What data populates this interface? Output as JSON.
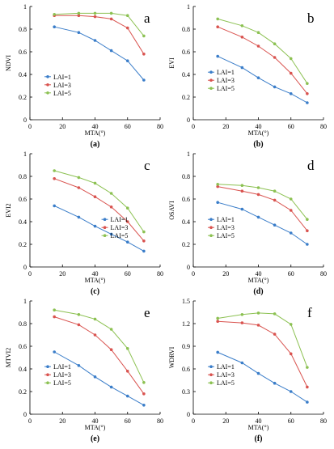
{
  "chart_data": [
    {
      "type": "line",
      "panel_letter": "a",
      "caption": "(a)",
      "ylabel": "NDVI",
      "xlabel": "MTA(°)",
      "xlim": [
        0,
        80
      ],
      "xticks": [
        "0",
        "20",
        "40",
        "60",
        "80"
      ],
      "ylim": [
        0,
        1
      ],
      "yticks": [
        "0",
        "0.2",
        "0.4",
        "0.6",
        "0.8",
        "1"
      ],
      "x": [
        15,
        30,
        40,
        50,
        60,
        70
      ],
      "series": [
        {
          "name": "LAI=1",
          "color": "#3a7dc9",
          "values": [
            0.82,
            0.77,
            0.7,
            0.61,
            0.52,
            0.35
          ]
        },
        {
          "name": "LAI=3",
          "color": "#d9534f",
          "values": [
            0.92,
            0.92,
            0.91,
            0.89,
            0.81,
            0.58
          ]
        },
        {
          "name": "LAI=5",
          "color": "#8cc152",
          "values": [
            0.93,
            0.94,
            0.94,
            0.94,
            0.92,
            0.74
          ]
        }
      ],
      "legend": "center-left"
    },
    {
      "type": "line",
      "panel_letter": "b",
      "caption": "(b)",
      "ylabel": "EVI",
      "xlabel": "MTA(°)",
      "xlim": [
        0,
        80
      ],
      "xticks": [
        "0",
        "20",
        "40",
        "60",
        "80"
      ],
      "ylim": [
        0,
        1
      ],
      "yticks": [
        "0",
        "0.2",
        "0.4",
        "0.6",
        "0.8",
        "1"
      ],
      "x": [
        15,
        30,
        40,
        50,
        60,
        70
      ],
      "series": [
        {
          "name": "LAI=1",
          "color": "#3a7dc9",
          "values": [
            0.56,
            0.46,
            0.37,
            0.29,
            0.23,
            0.15
          ]
        },
        {
          "name": "LAI=3",
          "color": "#d9534f",
          "values": [
            0.82,
            0.73,
            0.65,
            0.55,
            0.41,
            0.23
          ]
        },
        {
          "name": "LAI=5",
          "color": "#8cc152",
          "values": [
            0.89,
            0.83,
            0.77,
            0.67,
            0.54,
            0.32
          ]
        }
      ],
      "legend": "bottom-left"
    },
    {
      "type": "line",
      "panel_letter": "c",
      "caption": "(c)",
      "ylabel": "EVI2",
      "xlabel": "MTA(°)",
      "xlim": [
        0,
        80
      ],
      "xticks": [
        "0",
        "20",
        "40",
        "60",
        "80"
      ],
      "ylim": [
        0,
        1
      ],
      "yticks": [
        "0",
        "0.2",
        "0.4",
        "0.6",
        "0.8",
        "1"
      ],
      "x": [
        15,
        30,
        40,
        50,
        60,
        70
      ],
      "series": [
        {
          "name": "LAI=1",
          "color": "#3a7dc9",
          "values": [
            0.54,
            0.44,
            0.36,
            0.29,
            0.22,
            0.14
          ]
        },
        {
          "name": "LAI=3",
          "color": "#d9534f",
          "values": [
            0.78,
            0.7,
            0.62,
            0.53,
            0.4,
            0.23
          ]
        },
        {
          "name": "LAI=5",
          "color": "#8cc152",
          "values": [
            0.85,
            0.79,
            0.74,
            0.65,
            0.52,
            0.31
          ]
        }
      ],
      "legend": "bottom-right"
    },
    {
      "type": "line",
      "panel_letter": "d",
      "caption": "(d)",
      "ylabel": "OSAVI",
      "xlabel": "MTA(°)",
      "xlim": [
        0,
        80
      ],
      "xticks": [
        "0",
        "20",
        "40",
        "60",
        "80"
      ],
      "ylim": [
        0,
        1
      ],
      "yticks": [
        "0",
        "0.2",
        "0.4",
        "0.6",
        "0.8",
        "1"
      ],
      "x": [
        15,
        30,
        40,
        50,
        60,
        70
      ],
      "series": [
        {
          "name": "LAI=1",
          "color": "#3a7dc9",
          "values": [
            0.57,
            0.51,
            0.44,
            0.37,
            0.3,
            0.2
          ]
        },
        {
          "name": "LAI=3",
          "color": "#d9534f",
          "values": [
            0.71,
            0.67,
            0.64,
            0.59,
            0.5,
            0.32
          ]
        },
        {
          "name": "LAI=5",
          "color": "#8cc152",
          "values": [
            0.73,
            0.72,
            0.7,
            0.67,
            0.6,
            0.42
          ]
        }
      ],
      "legend": "bottom-left"
    },
    {
      "type": "line",
      "panel_letter": "e",
      "caption": "(e)",
      "ylabel": "MTVI2",
      "xlabel": "MTA(°)",
      "xlim": [
        0,
        80
      ],
      "xticks": [
        "0",
        "20",
        "40",
        "60",
        "80"
      ],
      "ylim": [
        0,
        1
      ],
      "yticks": [
        "0",
        "0.2",
        "0.4",
        "0.6",
        "0.8",
        "1"
      ],
      "x": [
        15,
        30,
        40,
        50,
        60,
        70
      ],
      "series": [
        {
          "name": "LAI=1",
          "color": "#3a7dc9",
          "values": [
            0.55,
            0.43,
            0.33,
            0.24,
            0.16,
            0.08
          ]
        },
        {
          "name": "LAI=3",
          "color": "#d9534f",
          "values": [
            0.86,
            0.79,
            0.7,
            0.57,
            0.38,
            0.18
          ]
        },
        {
          "name": "LAI=5",
          "color": "#8cc152",
          "values": [
            0.92,
            0.88,
            0.84,
            0.75,
            0.58,
            0.28
          ]
        }
      ],
      "legend": "bottom-left"
    },
    {
      "type": "line",
      "panel_letter": "f",
      "caption": "(f)",
      "ylabel": "WDRVI",
      "xlabel": "MTA(°)",
      "xlim": [
        0,
        80
      ],
      "xticks": [
        "0",
        "20",
        "40",
        "60",
        "80"
      ],
      "ylim": [
        0,
        1.5
      ],
      "yticks": [
        "0",
        "0.3",
        "0.6",
        "0.9",
        "1.2",
        "1.5"
      ],
      "x": [
        15,
        30,
        40,
        50,
        60,
        70
      ],
      "series": [
        {
          "name": "LAI=1",
          "color": "#3a7dc9",
          "values": [
            0.82,
            0.68,
            0.54,
            0.41,
            0.3,
            0.16
          ]
        },
        {
          "name": "LAI=3",
          "color": "#d9534f",
          "values": [
            1.23,
            1.21,
            1.18,
            1.06,
            0.8,
            0.36
          ]
        },
        {
          "name": "LAI=5",
          "color": "#8cc152",
          "values": [
            1.27,
            1.32,
            1.34,
            1.33,
            1.19,
            0.62
          ]
        }
      ],
      "legend": "bottom-left"
    }
  ]
}
